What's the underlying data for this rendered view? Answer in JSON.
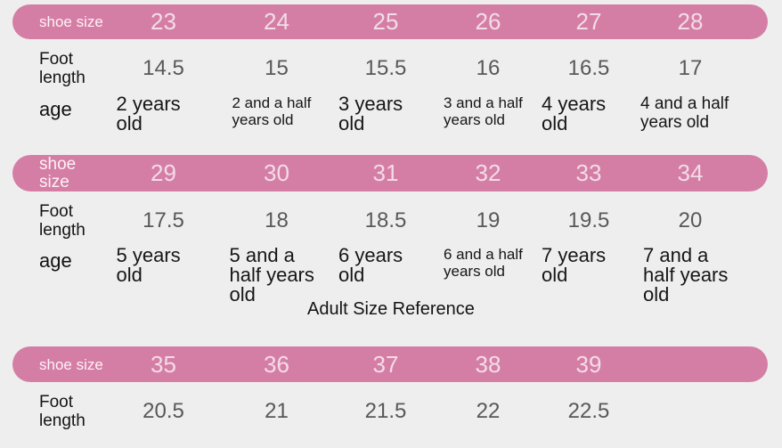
{
  "colors": {
    "background": "#efeeee",
    "bar_pink": "#d57ea5",
    "bar_number_text": "#f2dce8",
    "bar_label_text": "#fdf1f7",
    "foot_number_text": "#58585a",
    "body_text": "#171717"
  },
  "adult_heading": "Adult Size Reference",
  "chart_data": [
    {
      "type": "table",
      "row_headers": [
        "shoe size",
        "Foot length",
        "age"
      ],
      "rows": [
        [
          "23",
          "24",
          "25",
          "26",
          "27",
          "28"
        ],
        [
          "14.5",
          "15",
          "15.5",
          "16",
          "16.5",
          "17"
        ],
        [
          "2 years old",
          "2 and a half years old",
          "3 years old",
          "3 and a half years old",
          "4 years old",
          "4 and a half years old"
        ]
      ]
    },
    {
      "type": "table",
      "row_headers": [
        "shoe size",
        "Foot length",
        "age"
      ],
      "rows": [
        [
          "29",
          "30",
          "31",
          "32",
          "33",
          "34"
        ],
        [
          "17.5",
          "18",
          "18.5",
          "19",
          "19.5",
          "20"
        ],
        [
          "5 years old",
          "5 and a half years old",
          "6 years old",
          "6 and a half years old",
          "7 years old",
          "7 and a half years old"
        ]
      ]
    },
    {
      "type": "table",
      "title": "Adult Size Reference",
      "row_headers": [
        "shoe size",
        "Foot length"
      ],
      "rows": [
        [
          "35",
          "36",
          "37",
          "38",
          "39"
        ],
        [
          "20.5",
          "21",
          "21.5",
          "22",
          "22.5"
        ]
      ]
    }
  ]
}
